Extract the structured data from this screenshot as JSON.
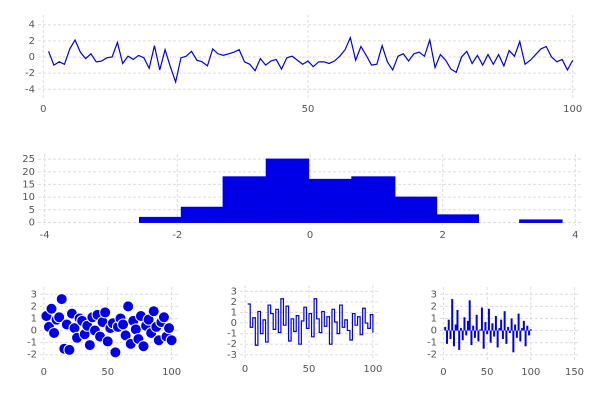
{
  "chart_data": [
    {
      "type": "line",
      "color": "#0000e6",
      "grid": true,
      "x": [
        1,
        2,
        3,
        4,
        5,
        6,
        7,
        8,
        9,
        10,
        11,
        12,
        13,
        14,
        15,
        16,
        17,
        18,
        19,
        20,
        21,
        22,
        23,
        24,
        25,
        26,
        27,
        28,
        29,
        30,
        31,
        32,
        33,
        34,
        35,
        36,
        37,
        38,
        39,
        40,
        41,
        42,
        43,
        44,
        45,
        46,
        47,
        48,
        49,
        50,
        51,
        52,
        53,
        54,
        55,
        56,
        57,
        58,
        59,
        60,
        61,
        62,
        63,
        64,
        65,
        66,
        67,
        68,
        69,
        70,
        71,
        72,
        73,
        74,
        75,
        76,
        77,
        78,
        79,
        80,
        81,
        82,
        83,
        84,
        85,
        86,
        87,
        88,
        89,
        90,
        91,
        92,
        93,
        94,
        95,
        96,
        97,
        98,
        99,
        100
      ],
      "values": [
        0.7,
        -1,
        -0.6,
        -0.9,
        1,
        2.1,
        0.6,
        -0.2,
        0.4,
        -0.6,
        -0.5,
        -0.1,
        0,
        1.8,
        -0.8,
        0.1,
        -0.3,
        0.2,
        -0.1,
        -1.4,
        1.4,
        -1.6,
        0.9,
        -1.2,
        -3.1,
        -0.1,
        0.1,
        0.7,
        -0.4,
        -0.6,
        -1.1,
        1,
        0.4,
        0.2,
        0.4,
        0.6,
        0.9,
        -0.6,
        -0.9,
        -1.7,
        -0.2,
        -1,
        -0.5,
        -0.3,
        -1.5,
        -0.1,
        0.1,
        -0.4,
        -0.9,
        -0.5,
        -1.2,
        -0.6,
        -0.6,
        -0.8,
        -0.5,
        0.1,
        0.9,
        2.4,
        -0.4,
        1.3,
        0.2,
        -1,
        -0.9,
        1.4,
        -0.6,
        -1.6,
        0.1,
        0.4,
        -0.5,
        0.4,
        0.6,
        0.1,
        2.1,
        -1.3,
        0.3,
        -0.4,
        -1.5,
        -1.9,
        0,
        0.7,
        -0.8,
        0.2,
        -1,
        0.3,
        -0.9,
        0.3,
        -1.1,
        0.8,
        0.1,
        1.9,
        -0.9,
        -0.4,
        0.3,
        1,
        1.3,
        0,
        -0.6,
        -0.3,
        -1.6,
        -0.4
      ],
      "xlim": [
        -1,
        101
      ],
      "xticks": [
        0,
        50,
        100
      ],
      "ylim": [
        -5.2,
        5.2
      ],
      "yticks": [
        -4,
        -2,
        0,
        2,
        4
      ]
    },
    {
      "type": "histogram",
      "color": "#0000e6",
      "grid": true,
      "bins": [
        -2.57,
        -1.94,
        -1.31,
        -0.66,
        -0.02,
        0.63,
        1.28,
        1.91,
        2.54,
        3.16,
        3.8
      ],
      "values": [
        2,
        6,
        18,
        25,
        17,
        18,
        10,
        3,
        0,
        1
      ],
      "xlim": [
        -4.1,
        4.1
      ],
      "xticks": [
        -4,
        -2,
        0,
        2,
        4
      ],
      "ylim": [
        -1,
        27
      ],
      "yticks": [
        0,
        5,
        10,
        15,
        20,
        25
      ]
    },
    {
      "type": "scatter",
      "color": "#0000e6",
      "grid": true,
      "x": [
        2,
        4,
        6,
        8,
        10,
        12,
        14,
        16,
        18,
        20,
        22,
        24,
        26,
        28,
        30,
        32,
        34,
        36,
        38,
        40,
        42,
        44,
        46,
        48,
        50,
        52,
        54,
        56,
        58,
        60,
        62,
        64,
        66,
        68,
        70,
        72,
        74,
        76,
        78,
        80,
        82,
        84,
        86,
        88,
        90,
        92,
        94,
        96,
        98,
        100
      ],
      "values": [
        1.2,
        0.3,
        1.8,
        -0.2,
        0.9,
        1.1,
        2.6,
        -1.5,
        0.5,
        -1.6,
        1.4,
        0.2,
        -0.6,
        1.0,
        0.8,
        -0.3,
        0.4,
        -1.2,
        1.1,
        0.0,
        1.3,
        -0.5,
        0.7,
        1.5,
        -0.9,
        0.2,
        0.6,
        -1.8,
        0.3,
        1.0,
        0.5,
        -0.4,
        2.0,
        -1.1,
        0.8,
        0.1,
        -0.7,
        1.2,
        -1.3,
        0.4,
        0.9,
        -0.2,
        1.6,
        0.3,
        -0.8,
        0.7,
        1.1,
        -0.5,
        0.2,
        -0.8
      ],
      "xlim": [
        -3,
        105
      ],
      "xticks": [
        0,
        50,
        100
      ],
      "ylim": [
        -2.6,
        3.6
      ],
      "yticks": [
        -2,
        -1,
        0,
        1,
        2,
        3
      ]
    },
    {
      "type": "step",
      "color": "#0000e6",
      "grid": true,
      "x": [
        2,
        4,
        6,
        8,
        10,
        12,
        14,
        16,
        18,
        20,
        22,
        24,
        26,
        28,
        30,
        32,
        34,
        36,
        38,
        40,
        42,
        44,
        46,
        48,
        50,
        52,
        54,
        56,
        58,
        60,
        62,
        64,
        66,
        68,
        70,
        72,
        74,
        76,
        78,
        80,
        82,
        84,
        86,
        88,
        90,
        92,
        94,
        96,
        98,
        100
      ],
      "values": [
        1.8,
        -0.4,
        0.5,
        -2.1,
        1.1,
        -1.0,
        0.3,
        -1.8,
        1.7,
        0.9,
        -0.6,
        1.3,
        -0.9,
        2.3,
        -0.2,
        1.6,
        -1.7,
        0.4,
        -0.8,
        0.7,
        -2.0,
        0.2,
        1.5,
        -0.5,
        0.9,
        -1.3,
        2.3,
        0.4,
        -0.9,
        1.1,
        -0.3,
        0.6,
        -2.0,
        1.3,
        0.1,
        -1.0,
        1.7,
        -0.4,
        0.3,
        -0.7,
        -1.6,
        0.9,
        -0.2,
        0.6,
        -1.1,
        1.4,
        0.0,
        -0.5,
        0.8,
        -0.9
      ],
      "xlim": [
        -4,
        104
      ],
      "xticks": [
        0,
        50,
        100
      ],
      "ylim": [
        -3.4,
        3.6
      ],
      "yticks": [
        -3,
        -2,
        -1,
        0,
        1,
        2,
        3
      ]
    },
    {
      "type": "stem",
      "color": "#0000e6",
      "grid": true,
      "x": [
        2,
        4,
        6,
        8,
        10,
        12,
        14,
        16,
        18,
        20,
        22,
        24,
        26,
        28,
        30,
        32,
        34,
        36,
        38,
        40,
        42,
        44,
        46,
        48,
        50,
        52,
        54,
        56,
        58,
        60,
        62,
        64,
        66,
        68,
        70,
        72,
        74,
        76,
        78,
        80,
        82,
        84,
        86,
        88,
        90,
        92,
        94,
        96,
        98,
        100
      ],
      "values": [
        0.3,
        -1.1,
        0.9,
        -0.7,
        2.6,
        -1.3,
        0.5,
        1.7,
        -1.6,
        0.2,
        -0.8,
        1.1,
        -0.4,
        0.8,
        2.5,
        -1.2,
        0.4,
        -0.6,
        1.3,
        -0.9,
        0.1,
        1.9,
        -1.5,
        0.7,
        -0.3,
        1.8,
        -1.0,
        0.6,
        -0.5,
        1.2,
        -1.4,
        0.2,
        0.9,
        -0.7,
        1.6,
        -1.1,
        0.3,
        -0.2,
        1.0,
        -1.8,
        0.5,
        -0.6,
        1.4,
        -0.9,
        0.2,
        0.8,
        -1.3,
        0.4,
        -0.4,
        0.1
      ],
      "xlim": [
        -4,
        154
      ],
      "xticks": [
        0,
        50,
        100,
        150
      ],
      "ylim": [
        -2.6,
        3.6
      ],
      "yticks": [
        -2,
        -1,
        0,
        1,
        2,
        3
      ]
    }
  ]
}
